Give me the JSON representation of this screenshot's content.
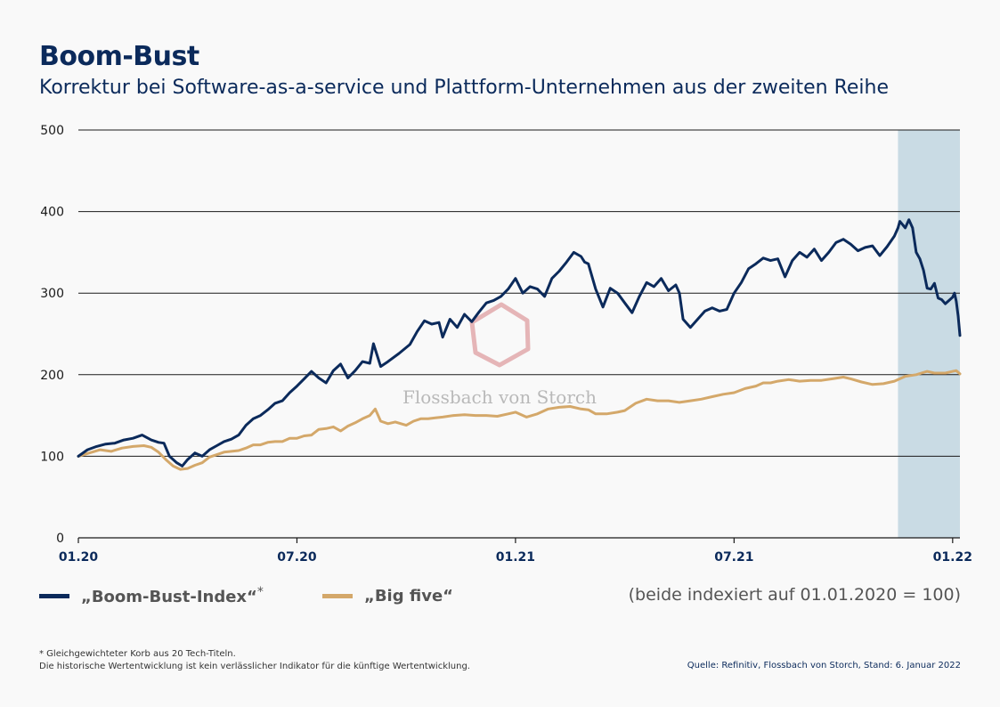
{
  "title": "Boom-Bust",
  "subtitle": "Korrektur bei Software-as-a-service und Plattform-Unternehmen aus der zweiten Reihe",
  "watermark": "Flossbach von Storch",
  "legend": {
    "boom_bust": {
      "label": "„Boom-Bust-Index“",
      "marker": "*",
      "color": "#0b2a5b"
    },
    "big_five": {
      "label": "„Big five“",
      "color": "#d4a86a"
    },
    "index_note": "(beide indexiert auf 01.01.2020 = 100)"
  },
  "footnote": {
    "line1": "* Gleichgewichteter Korb aus 20 Tech-Titeln.",
    "line2": "Die historische Wertentwicklung ist kein verlässlicher Indikator für die künftige Wertentwicklung."
  },
  "source": "Quelle: Refinitiv, Flossbach von Storch, Stand: 6. Januar 2022",
  "chart_data": {
    "type": "line",
    "title": "Boom-Bust",
    "xlabel": "",
    "ylabel": "",
    "ylim": [
      0,
      500
    ],
    "yticks": [
      0,
      100,
      200,
      300,
      400,
      500
    ],
    "xlim_months": [
      0,
      24.2
    ],
    "xticks": [
      {
        "label": "01.20",
        "month": 0
      },
      {
        "label": "07.20",
        "month": 6
      },
      {
        "label": "01.21",
        "month": 12
      },
      {
        "label": "07.21",
        "month": 18
      },
      {
        "label": "01.22",
        "month": 24
      }
    ],
    "shaded_region": {
      "from_month": 22.5,
      "to_month": 24.2,
      "color": "#c9dbe4"
    },
    "series": [
      {
        "name": "„Boom-Bust-Index“*",
        "color": "#0b2a5b",
        "points": [
          [
            0,
            100
          ],
          [
            0.25,
            108
          ],
          [
            0.5,
            112
          ],
          [
            0.75,
            115
          ],
          [
            1.0,
            116
          ],
          [
            1.25,
            120
          ],
          [
            1.5,
            122
          ],
          [
            1.75,
            126
          ],
          [
            2.0,
            120
          ],
          [
            2.2,
            117
          ],
          [
            2.35,
            116
          ],
          [
            2.5,
            100
          ],
          [
            2.7,
            92
          ],
          [
            2.85,
            88
          ],
          [
            3.0,
            96
          ],
          [
            3.2,
            104
          ],
          [
            3.4,
            100
          ],
          [
            3.6,
            108
          ],
          [
            3.8,
            113
          ],
          [
            4.0,
            118
          ],
          [
            4.2,
            121
          ],
          [
            4.4,
            126
          ],
          [
            4.6,
            138
          ],
          [
            4.8,
            146
          ],
          [
            5.0,
            150
          ],
          [
            5.2,
            157
          ],
          [
            5.4,
            165
          ],
          [
            5.6,
            168
          ],
          [
            5.8,
            178
          ],
          [
            6.0,
            186
          ],
          [
            6.2,
            195
          ],
          [
            6.4,
            204
          ],
          [
            6.6,
            196
          ],
          [
            6.8,
            190
          ],
          [
            7.0,
            205
          ],
          [
            7.2,
            213
          ],
          [
            7.4,
            196
          ],
          [
            7.6,
            205
          ],
          [
            7.8,
            216
          ],
          [
            8.0,
            214
          ],
          [
            8.1,
            238
          ],
          [
            8.3,
            210
          ],
          [
            8.5,
            216
          ],
          [
            8.8,
            226
          ],
          [
            9.1,
            237
          ],
          [
            9.3,
            253
          ],
          [
            9.5,
            266
          ],
          [
            9.7,
            262
          ],
          [
            9.9,
            264
          ],
          [
            10.0,
            246
          ],
          [
            10.2,
            268
          ],
          [
            10.4,
            258
          ],
          [
            10.6,
            274
          ],
          [
            10.8,
            265
          ],
          [
            11.0,
            277
          ],
          [
            11.2,
            288
          ],
          [
            11.4,
            291
          ],
          [
            11.6,
            296
          ],
          [
            11.8,
            305
          ],
          [
            12.0,
            318
          ],
          [
            12.2,
            300
          ],
          [
            12.4,
            308
          ],
          [
            12.6,
            305
          ],
          [
            12.8,
            296
          ],
          [
            13.0,
            318
          ],
          [
            13.2,
            327
          ],
          [
            13.4,
            338
          ],
          [
            13.6,
            350
          ],
          [
            13.8,
            345
          ],
          [
            13.9,
            338
          ],
          [
            14.0,
            336
          ],
          [
            14.2,
            305
          ],
          [
            14.4,
            283
          ],
          [
            14.6,
            306
          ],
          [
            14.8,
            300
          ],
          [
            15.0,
            288
          ],
          [
            15.2,
            276
          ],
          [
            15.4,
            296
          ],
          [
            15.6,
            313
          ],
          [
            15.8,
            308
          ],
          [
            16.0,
            318
          ],
          [
            16.2,
            303
          ],
          [
            16.4,
            310
          ],
          [
            16.5,
            300
          ],
          [
            16.6,
            268
          ],
          [
            16.8,
            258
          ],
          [
            17.0,
            268
          ],
          [
            17.2,
            278
          ],
          [
            17.4,
            282
          ],
          [
            17.6,
            278
          ],
          [
            17.8,
            280
          ],
          [
            17.9,
            290
          ],
          [
            18.0,
            300
          ],
          [
            18.2,
            313
          ],
          [
            18.4,
            330
          ],
          [
            18.6,
            336
          ],
          [
            18.8,
            343
          ],
          [
            19.0,
            340
          ],
          [
            19.2,
            342
          ],
          [
            19.4,
            320
          ],
          [
            19.6,
            340
          ],
          [
            19.8,
            350
          ],
          [
            20.0,
            344
          ],
          [
            20.2,
            354
          ],
          [
            20.4,
            340
          ],
          [
            20.6,
            350
          ],
          [
            20.8,
            362
          ],
          [
            21.0,
            366
          ],
          [
            21.2,
            360
          ],
          [
            21.4,
            352
          ],
          [
            21.6,
            356
          ],
          [
            21.8,
            358
          ],
          [
            22.0,
            346
          ],
          [
            22.2,
            357
          ],
          [
            22.4,
            370
          ],
          [
            22.5,
            380
          ],
          [
            22.55,
            388
          ],
          [
            22.7,
            380
          ],
          [
            22.8,
            390
          ],
          [
            22.9,
            380
          ],
          [
            23.0,
            350
          ],
          [
            23.1,
            342
          ],
          [
            23.2,
            328
          ],
          [
            23.3,
            306
          ],
          [
            23.4,
            305
          ],
          [
            23.5,
            312
          ],
          [
            23.6,
            294
          ],
          [
            23.7,
            292
          ],
          [
            23.8,
            287
          ],
          [
            24.0,
            295
          ],
          [
            24.05,
            300
          ],
          [
            24.1,
            290
          ],
          [
            24.15,
            272
          ],
          [
            24.2,
            248
          ]
        ]
      },
      {
        "name": "„Big five“",
        "color": "#d4a86a",
        "points": [
          [
            0,
            100
          ],
          [
            0.3,
            104
          ],
          [
            0.6,
            108
          ],
          [
            0.9,
            106
          ],
          [
            1.2,
            110
          ],
          [
            1.5,
            112
          ],
          [
            1.8,
            113
          ],
          [
            2.0,
            111
          ],
          [
            2.2,
            105
          ],
          [
            2.4,
            96
          ],
          [
            2.6,
            88
          ],
          [
            2.8,
            84
          ],
          [
            3.0,
            85
          ],
          [
            3.2,
            89
          ],
          [
            3.4,
            92
          ],
          [
            3.6,
            99
          ],
          [
            3.8,
            102
          ],
          [
            4.0,
            105
          ],
          [
            4.2,
            106
          ],
          [
            4.4,
            107
          ],
          [
            4.6,
            110
          ],
          [
            4.8,
            114
          ],
          [
            5.0,
            114
          ],
          [
            5.2,
            117
          ],
          [
            5.4,
            118
          ],
          [
            5.6,
            118
          ],
          [
            5.8,
            122
          ],
          [
            6.0,
            122
          ],
          [
            6.2,
            125
          ],
          [
            6.4,
            126
          ],
          [
            6.6,
            133
          ],
          [
            6.8,
            134
          ],
          [
            7.0,
            136
          ],
          [
            7.2,
            131
          ],
          [
            7.4,
            137
          ],
          [
            7.6,
            141
          ],
          [
            7.8,
            146
          ],
          [
            8.0,
            150
          ],
          [
            8.15,
            158
          ],
          [
            8.3,
            143
          ],
          [
            8.5,
            140
          ],
          [
            8.7,
            142
          ],
          [
            9.0,
            138
          ],
          [
            9.2,
            143
          ],
          [
            9.4,
            146
          ],
          [
            9.6,
            146
          ],
          [
            9.8,
            147
          ],
          [
            10.0,
            148
          ],
          [
            10.3,
            150
          ],
          [
            10.6,
            151
          ],
          [
            10.9,
            150
          ],
          [
            11.2,
            150
          ],
          [
            11.5,
            149
          ],
          [
            11.8,
            152
          ],
          [
            12.0,
            154
          ],
          [
            12.3,
            148
          ],
          [
            12.6,
            152
          ],
          [
            12.9,
            158
          ],
          [
            13.2,
            160
          ],
          [
            13.5,
            161
          ],
          [
            13.8,
            158
          ],
          [
            14.0,
            157
          ],
          [
            14.2,
            152
          ],
          [
            14.5,
            152
          ],
          [
            14.8,
            154
          ],
          [
            15.0,
            156
          ],
          [
            15.3,
            165
          ],
          [
            15.6,
            170
          ],
          [
            15.9,
            168
          ],
          [
            16.2,
            168
          ],
          [
            16.5,
            166
          ],
          [
            16.8,
            168
          ],
          [
            17.1,
            170
          ],
          [
            17.4,
            173
          ],
          [
            17.7,
            176
          ],
          [
            18.0,
            178
          ],
          [
            18.3,
            183
          ],
          [
            18.6,
            186
          ],
          [
            18.8,
            190
          ],
          [
            19.0,
            190
          ],
          [
            19.2,
            192
          ],
          [
            19.5,
            194
          ],
          [
            19.8,
            192
          ],
          [
            20.1,
            193
          ],
          [
            20.4,
            193
          ],
          [
            20.7,
            195
          ],
          [
            21.0,
            197
          ],
          [
            21.2,
            195
          ],
          [
            21.5,
            191
          ],
          [
            21.8,
            188
          ],
          [
            22.1,
            189
          ],
          [
            22.4,
            192
          ],
          [
            22.7,
            198
          ],
          [
            23.0,
            200
          ],
          [
            23.3,
            204
          ],
          [
            23.5,
            202
          ],
          [
            23.8,
            202
          ],
          [
            24.0,
            204
          ],
          [
            24.1,
            205
          ],
          [
            24.2,
            201
          ]
        ]
      }
    ]
  }
}
